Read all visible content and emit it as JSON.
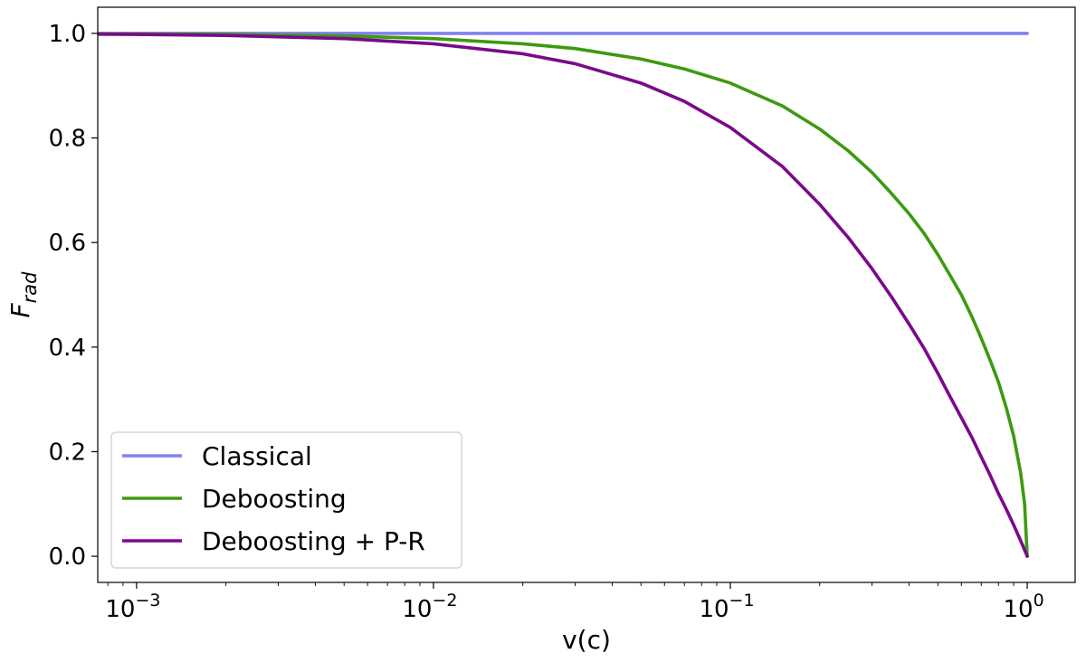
{
  "chart_data": {
    "type": "line",
    "title": "",
    "xlabel": "v(c)",
    "ylabel": {
      "main": "F",
      "sub": "rad"
    },
    "xscale": "log",
    "xlim": [
      0.00074,
      1.45
    ],
    "ylim": [
      -0.05,
      1.05
    ],
    "xticks": [
      {
        "value": 0.001,
        "base": "10",
        "exp": "−3"
      },
      {
        "value": 0.01,
        "base": "10",
        "exp": "−2"
      },
      {
        "value": 0.1,
        "base": "10",
        "exp": "−1"
      },
      {
        "value": 1,
        "base": "10",
        "exp": "0"
      }
    ],
    "yticks": [
      {
        "value": 0.0,
        "label": "0.0"
      },
      {
        "value": 0.2,
        "label": "0.2"
      },
      {
        "value": 0.4,
        "label": "0.4"
      },
      {
        "value": 0.6,
        "label": "0.6"
      },
      {
        "value": 0.8,
        "label": "0.8"
      },
      {
        "value": 1.0,
        "label": "1.0"
      }
    ],
    "grid": false,
    "legend_position": "lower-left",
    "series": [
      {
        "name": "Classical",
        "color": "#8080f0",
        "x": [
          0.00074,
          0.001,
          0.003,
          0.01,
          0.03,
          0.1,
          0.3,
          0.5,
          0.7,
          0.9,
          1.0
        ],
        "y": [
          1.0,
          1.0,
          1.0,
          1.0,
          1.0,
          1.0,
          1.0,
          1.0,
          1.0,
          1.0,
          1.0
        ]
      },
      {
        "name": "Deboosting",
        "color": "#3d9a10",
        "x": [
          0.00074,
          0.001,
          0.002,
          0.005,
          0.01,
          0.02,
          0.03,
          0.05,
          0.07,
          0.1,
          0.15,
          0.2,
          0.25,
          0.3,
          0.35,
          0.4,
          0.45,
          0.5,
          0.55,
          0.6,
          0.65,
          0.7,
          0.75,
          0.8,
          0.85,
          0.9,
          0.95,
          0.98,
          1.0
        ],
        "y": [
          0.9993,
          0.999,
          0.998,
          0.995,
          0.99,
          0.98,
          0.971,
          0.951,
          0.932,
          0.905,
          0.861,
          0.817,
          0.775,
          0.734,
          0.693,
          0.655,
          0.617,
          0.577,
          0.537,
          0.5,
          0.459,
          0.417,
          0.375,
          0.333,
          0.284,
          0.23,
          0.16,
          0.1,
          0.0
        ]
      },
      {
        "name": "Deboosting + P-R",
        "color": "#7a0a8a",
        "x": [
          0.00074,
          0.001,
          0.002,
          0.005,
          0.01,
          0.02,
          0.03,
          0.05,
          0.07,
          0.1,
          0.15,
          0.2,
          0.25,
          0.3,
          0.35,
          0.4,
          0.45,
          0.5,
          0.55,
          0.6,
          0.65,
          0.7,
          0.75,
          0.8,
          0.85,
          0.9,
          0.95,
          0.98,
          1.0
        ],
        "y": [
          0.9985,
          0.998,
          0.996,
          0.99,
          0.98,
          0.961,
          0.942,
          0.905,
          0.87,
          0.82,
          0.745,
          0.673,
          0.609,
          0.55,
          0.495,
          0.444,
          0.397,
          0.35,
          0.305,
          0.265,
          0.228,
          0.19,
          0.155,
          0.12,
          0.09,
          0.06,
          0.03,
          0.012,
          0.0
        ]
      }
    ]
  }
}
